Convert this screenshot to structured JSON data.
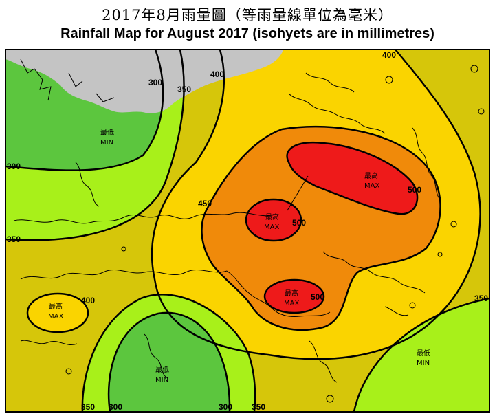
{
  "header": {
    "title_zh": "2017年8月雨量圖（等雨量線單位為毫米）",
    "title_en": "Rainfall Map for August 2017 (isohyets are in millimetres)"
  },
  "colors": {
    "land_grey": "#c4c4c4",
    "band_lt_300": "#5cc63e",
    "band_300_350": "#a8f01a",
    "band_350_400": "#d6c60a",
    "band_400_450": "#fad400",
    "band_450_500": "#f08a0a",
    "band_gt_500": "#ee1a1a",
    "isohyet_line": "#000000"
  },
  "map": {
    "isohyet_labels": {
      "nw_300": "300",
      "nw_350": "350",
      "n_400": "400",
      "ne_400": "400",
      "w_300": "300",
      "w_350": "350",
      "c_450": "450",
      "ne_500": "500",
      "c_500": "500",
      "s_500": "500",
      "w_400": "400",
      "e_350": "350",
      "b_350a": "350",
      "b_300a": "300",
      "b_300b": "300",
      "b_350b": "350"
    },
    "zones": {
      "nw_min": {
        "zh": "最低",
        "en": "MIN"
      },
      "ne_max": {
        "zh": "最高",
        "en": "MAX"
      },
      "c_max": {
        "zh": "最高",
        "en": "MAX"
      },
      "s_max": {
        "zh": "最高",
        "en": "MAX"
      },
      "w_max": {
        "zh": "最高",
        "en": "MAX"
      },
      "s_min": {
        "zh": "最低",
        "en": "MIN"
      },
      "se_min": {
        "zh": "最低",
        "en": "MIN"
      }
    }
  }
}
